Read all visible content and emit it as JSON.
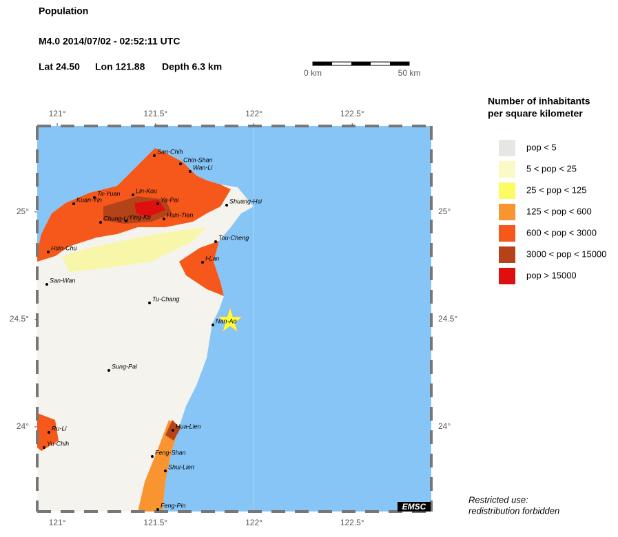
{
  "header": {
    "title": "Population",
    "event": "M4.0  2014/07/02 - 02:52:11 UTC",
    "lat": "Lat 24.50",
    "lon": "Lon 121.88",
    "depth": "Depth  6.3 km"
  },
  "scale": {
    "start": "0 km",
    "end": "50 km"
  },
  "map": {
    "xlim": [
      120.898,
      122.902
    ],
    "ylim": [
      23.606,
      25.4
    ],
    "xticks": [
      {
        "value": 121,
        "label": "121°"
      },
      {
        "value": 121.5,
        "label": "121.5°"
      },
      {
        "value": 122,
        "label": "122°"
      },
      {
        "value": 122.5,
        "label": "122.5°"
      }
    ],
    "yticks": [
      {
        "value": 25,
        "label": "25°"
      },
      {
        "value": 24.5,
        "label": "24.5°"
      },
      {
        "value": 24,
        "label": "24°"
      }
    ],
    "cities": [
      "San-Chih",
      "Chin-Shan",
      "Wan-Li",
      "Ta-Yuan",
      "Kuan-Yin",
      "Lin-Kou",
      "Ya-Pai",
      "Shuang-Hsi",
      "Chung-Li",
      "Ying-Ko",
      "Hsin-Tien",
      "Tou-Cheng",
      "Hsin-Chu",
      "I-Lan",
      "San-Wan",
      "Tu-Chang",
      "Nan-Ao",
      "Sung-Pai",
      "Ru-Li",
      "Yu-Chih",
      "Hua-Lien",
      "Feng-Shan",
      "Shui-Lien",
      "Feng-Pin"
    ],
    "credit": "EMSC"
  },
  "legend": {
    "title": [
      "Number of inhabitants",
      "per square kilometer"
    ],
    "items": [
      {
        "label": "pop < 5",
        "color": "#e6e6e3"
      },
      {
        "label": "5 < pop < 25",
        "color": "#fbf9c5"
      },
      {
        "label": "25 < pop < 125",
        "color": "#fbfb64"
      },
      {
        "label": "125 < pop < 600",
        "color": "#f99530"
      },
      {
        "label": "600 < pop < 3000",
        "color": "#f5581a"
      },
      {
        "label": "3000 < pop < 15000",
        "color": "#b5431a"
      },
      {
        "label": "pop > 15000",
        "color": "#dd0f0f"
      }
    ]
  },
  "note": [
    "Restricted use:",
    "redistribution forbidden"
  ]
}
